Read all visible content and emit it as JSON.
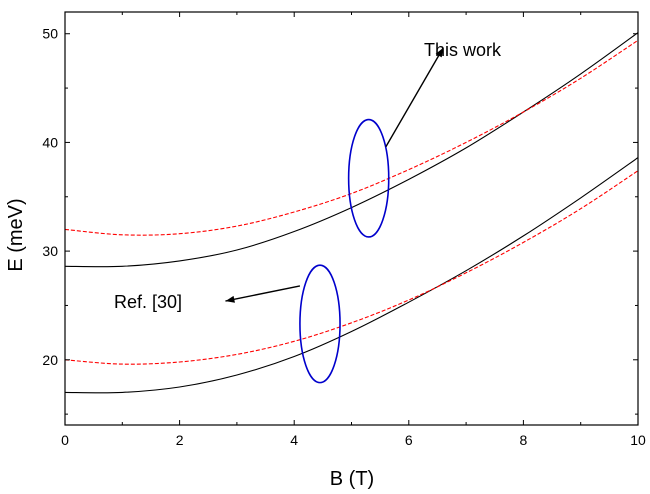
{
  "chart_data": {
    "type": "line",
    "title": "",
    "xlabel": "B (T)",
    "ylabel": "E (meV)",
    "xlim": [
      0,
      10
    ],
    "ylim": [
      14,
      52
    ],
    "xticks": [
      0,
      2,
      4,
      6,
      8,
      10
    ],
    "yticks": [
      20,
      30,
      40,
      50
    ],
    "grid": false,
    "x": [
      0,
      1,
      2,
      3,
      4,
      5,
      6,
      7,
      8,
      9,
      10
    ],
    "series": [
      {
        "group": "This work",
        "color": "#000000",
        "dash": "solid",
        "values": [
          28.6,
          28.6,
          29.1,
          30.1,
          31.8,
          34.0,
          36.6,
          39.5,
          42.8,
          46.3,
          50.1
        ]
      },
      {
        "group": "Ref. [30]",
        "color": "#ff0000",
        "dash": "dashed",
        "values": [
          32.0,
          31.5,
          31.6,
          32.3,
          33.6,
          35.3,
          37.5,
          40.0,
          42.8,
          45.9,
          49.4
        ]
      },
      {
        "group": "This work",
        "color": "#000000",
        "dash": "solid",
        "values": [
          17.0,
          17.0,
          17.5,
          18.6,
          20.3,
          22.6,
          25.3,
          28.2,
          31.4,
          34.9,
          38.6
        ]
      },
      {
        "group": "Ref. [30]",
        "color": "#ff0000",
        "dash": "dashed",
        "values": [
          20.0,
          19.6,
          19.8,
          20.5,
          21.7,
          23.4,
          25.5,
          28.0,
          30.8,
          33.9,
          37.4
        ]
      }
    ],
    "annotations": [
      {
        "text": "This work",
        "ellipse_center": [
          5.3,
          36.7
        ],
        "ellipse_radii": [
          0.35,
          5.4
        ],
        "arrow_from": [
          5.6,
          39.6
        ],
        "arrow_to": [
          6.6,
          48.7
        ]
      },
      {
        "text": "Ref. [30]",
        "ellipse_center": [
          4.45,
          23.3
        ],
        "ellipse_radii": [
          0.35,
          5.4
        ],
        "arrow_from": [
          4.1,
          26.8
        ],
        "arrow_to": [
          2.8,
          25.4
        ]
      }
    ],
    "colors": {
      "this_work": "#000000",
      "ref": "#ff0000",
      "ellipse": "#0000cc"
    }
  }
}
